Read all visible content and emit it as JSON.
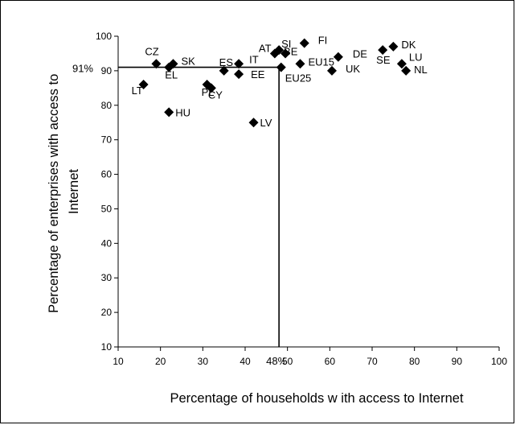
{
  "chart_data": {
    "type": "scatter",
    "title": "",
    "xlabel": "Percentage of households w ith access to Internet",
    "ylabel_lines": [
      "Percentage of enterprises with access to",
      "Internet"
    ],
    "xlim": [
      10,
      100
    ],
    "ylim": [
      10,
      100
    ],
    "x_ticks": [
      "10",
      "20",
      "30",
      "40",
      "50",
      "60",
      "70",
      "80",
      "90",
      "100"
    ],
    "y_ticks": [
      "10",
      "20",
      "30",
      "40",
      "50",
      "60",
      "70",
      "80",
      "90",
      "100"
    ],
    "grid": false,
    "legend": "none",
    "marker": "diamond",
    "marker_color": "#000000",
    "reference_lines": {
      "x": 48,
      "x_label": "48%",
      "y": 91,
      "y_label": "91%"
    },
    "points": [
      {
        "label": "CZ",
        "x": 19,
        "y": 92
      },
      {
        "label": "SK",
        "x": 23,
        "y": 92
      },
      {
        "label": "EL",
        "x": 22,
        "y": 91
      },
      {
        "label": "LT",
        "x": 16,
        "y": 86
      },
      {
        "label": "HU",
        "x": 22,
        "y": 78
      },
      {
        "label": "PL",
        "x": 31,
        "y": 86
      },
      {
        "label": "CY",
        "x": 32,
        "y": 85
      },
      {
        "label": "ES",
        "x": 35,
        "y": 90
      },
      {
        "label": "IT",
        "x": 38.5,
        "y": 92
      },
      {
        "label": "EE",
        "x": 38.5,
        "y": 89
      },
      {
        "label": "LV",
        "x": 42,
        "y": 75
      },
      {
        "label": "AT",
        "x": 47,
        "y": 95
      },
      {
        "label": "SI",
        "x": 48,
        "y": 96
      },
      {
        "label": "BE",
        "x": 49.5,
        "y": 95
      },
      {
        "label": "EU25",
        "x": 48.5,
        "y": 91
      },
      {
        "label": "FI",
        "x": 54,
        "y": 98
      },
      {
        "label": "EU15",
        "x": 53,
        "y": 92
      },
      {
        "label": "DE",
        "x": 62,
        "y": 94
      },
      {
        "label": "UK",
        "x": 60.5,
        "y": 90
      },
      {
        "label": "SE",
        "x": 72.5,
        "y": 96
      },
      {
        "label": "DK",
        "x": 75,
        "y": 97
      },
      {
        "label": "LU",
        "x": 77,
        "y": 92
      },
      {
        "label": "NL",
        "x": 78,
        "y": 90
      }
    ]
  }
}
